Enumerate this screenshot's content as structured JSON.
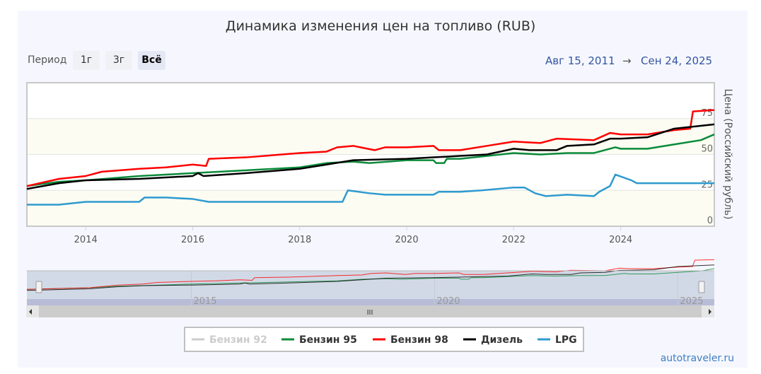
{
  "title": "Динамика изменения цен на топливо (RUB)",
  "range_selector": {
    "label": "Период",
    "buttons": [
      "1г",
      "3г",
      "Всё"
    ],
    "selected": "Всё"
  },
  "date_range": {
    "from": "Авг 15, 2011",
    "arrow": "→",
    "to": "Сен 24, 2025"
  },
  "credit": "autotraveler.ru",
  "navigator": {
    "ticks": [
      "2015",
      "2020",
      "2025"
    ],
    "scrollbar_grip": "III"
  },
  "chart_data": {
    "type": "line",
    "title": "Динамика изменения цен на топливо (RUB)",
    "ylabel": "Цена (Российский рубль)",
    "xlabel": "",
    "xlim": [
      2012.9,
      2025.75
    ],
    "ylim": [
      0,
      100
    ],
    "xticks": [
      "2014",
      "2016",
      "2018",
      "2020",
      "2022",
      "2024"
    ],
    "yticks": [
      "0",
      "25",
      "50",
      "75"
    ],
    "legend_position": "bottom-center",
    "series": [
      {
        "name": "Бензин 92",
        "color": "#cccccc",
        "hidden": true,
        "points": []
      },
      {
        "name": "Бензин 95",
        "color": "#0a8a3a",
        "points": [
          [
            2012.9,
            28
          ],
          [
            2013.5,
            31
          ],
          [
            2014,
            32
          ],
          [
            2015,
            35
          ],
          [
            2016,
            37
          ],
          [
            2017,
            39
          ],
          [
            2018,
            41
          ],
          [
            2018.5,
            44
          ],
          [
            2019,
            45
          ],
          [
            2019.3,
            44
          ],
          [
            2020,
            46
          ],
          [
            2020.5,
            46
          ],
          [
            2020.55,
            44
          ],
          [
            2020.7,
            44
          ],
          [
            2020.75,
            47
          ],
          [
            2021,
            47
          ],
          [
            2022,
            51
          ],
          [
            2022.5,
            50
          ],
          [
            2023,
            51
          ],
          [
            2023.5,
            51
          ],
          [
            2023.9,
            55
          ],
          [
            2024,
            54
          ],
          [
            2024.5,
            54
          ],
          [
            2025,
            57
          ],
          [
            2025.5,
            60
          ],
          [
            2025.75,
            64
          ]
        ]
      },
      {
        "name": "Бензин 98",
        "color": "#ff0000",
        "points": [
          [
            2012.9,
            28
          ],
          [
            2013.5,
            33
          ],
          [
            2014,
            35
          ],
          [
            2014.3,
            38
          ],
          [
            2015,
            40
          ],
          [
            2015.5,
            41
          ],
          [
            2016,
            43
          ],
          [
            2016.25,
            42
          ],
          [
            2016.3,
            47
          ],
          [
            2017,
            48
          ],
          [
            2018,
            51
          ],
          [
            2018.5,
            52
          ],
          [
            2018.7,
            55
          ],
          [
            2019,
            56
          ],
          [
            2019.4,
            53
          ],
          [
            2019.6,
            55
          ],
          [
            2020,
            55
          ],
          [
            2020.5,
            56
          ],
          [
            2020.6,
            53
          ],
          [
            2021,
            53
          ],
          [
            2021.5,
            56
          ],
          [
            2022,
            59
          ],
          [
            2022.5,
            58
          ],
          [
            2022.8,
            61
          ],
          [
            2023.5,
            60
          ],
          [
            2023.8,
            65
          ],
          [
            2024,
            64
          ],
          [
            2024.5,
            64
          ],
          [
            2025,
            67
          ],
          [
            2025.3,
            68
          ],
          [
            2025.35,
            80
          ],
          [
            2025.75,
            81
          ]
        ]
      },
      {
        "name": "Дизель",
        "color": "#000000",
        "points": [
          [
            2012.9,
            26
          ],
          [
            2013.5,
            30
          ],
          [
            2014,
            32
          ],
          [
            2015,
            33
          ],
          [
            2016,
            35
          ],
          [
            2016.1,
            37
          ],
          [
            2016.2,
            35
          ],
          [
            2017,
            37
          ],
          [
            2018,
            40
          ],
          [
            2018.5,
            43
          ],
          [
            2019,
            46
          ],
          [
            2020,
            47
          ],
          [
            2020.5,
            48
          ],
          [
            2021,
            49
          ],
          [
            2021.5,
            50
          ],
          [
            2022,
            54
          ],
          [
            2022.3,
            53
          ],
          [
            2022.8,
            53
          ],
          [
            2023,
            56
          ],
          [
            2023.5,
            57
          ],
          [
            2023.8,
            61
          ],
          [
            2024,
            61
          ],
          [
            2024.5,
            62
          ],
          [
            2025,
            68
          ],
          [
            2025.75,
            71
          ]
        ]
      },
      {
        "name": "LPG",
        "color": "#2e9ad0",
        "points": [
          [
            2012.9,
            15
          ],
          [
            2013.5,
            15
          ],
          [
            2014,
            17
          ],
          [
            2015,
            17
          ],
          [
            2015.1,
            20
          ],
          [
            2015.5,
            20
          ],
          [
            2016,
            19
          ],
          [
            2016.3,
            17
          ],
          [
            2018,
            17
          ],
          [
            2018.8,
            17
          ],
          [
            2018.9,
            25
          ],
          [
            2019.3,
            23
          ],
          [
            2019.6,
            22
          ],
          [
            2020,
            22
          ],
          [
            2020.5,
            22
          ],
          [
            2020.6,
            24
          ],
          [
            2021,
            24
          ],
          [
            2021.4,
            25
          ],
          [
            2022,
            27
          ],
          [
            2022.2,
            27
          ],
          [
            2022.4,
            23
          ],
          [
            2022.6,
            21
          ],
          [
            2023,
            22
          ],
          [
            2023.5,
            21
          ],
          [
            2023.6,
            24
          ],
          [
            2023.8,
            28
          ],
          [
            2023.9,
            36
          ],
          [
            2024.2,
            32
          ],
          [
            2024.3,
            30
          ],
          [
            2025.75,
            30
          ]
        ]
      }
    ]
  }
}
